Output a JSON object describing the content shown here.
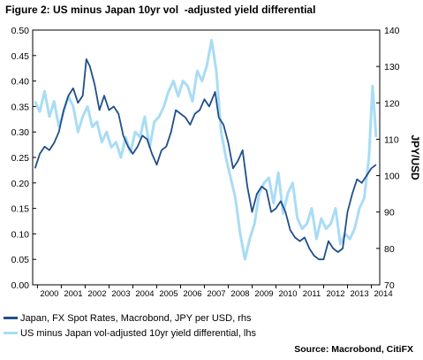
{
  "chart_data": {
    "type": "line",
    "title": "Figure 2: US minus Japan 10yr vol  -adjusted yield differential",
    "source": "Source: Macrobond, CitiFX",
    "left_axis": {
      "ylim": [
        0.0,
        0.5
      ],
      "ticks": [
        "0.00",
        "0.05",
        "0.10",
        "0.15",
        "0.20",
        "0.25",
        "0.30",
        "0.35",
        "0.40",
        "0.45",
        "0.50"
      ]
    },
    "right_axis": {
      "label": "JPY/USD",
      "ylim": [
        70,
        140
      ],
      "ticks": [
        "70",
        "80",
        "90",
        "100",
        "110",
        "120",
        "130",
        "140"
      ]
    },
    "x_ticks": [
      "2000",
      "2001",
      "2002",
      "2003",
      "2004",
      "2005",
      "2006",
      "2007",
      "2008",
      "2009",
      "2010",
      "2011",
      "2012",
      "2013",
      "2014"
    ],
    "xlim": [
      1999.8,
      2014.35
    ],
    "grid": false,
    "legend_position": "bottom-left",
    "series": [
      {
        "name": "Japan, FX Spot Rates, Macrobond, JPY per USD, rhs",
        "axis": "right",
        "color": "#1f4e8c",
        "x": [
          1999.9,
          2000.1,
          2000.3,
          2000.5,
          2000.7,
          2000.9,
          2001.1,
          2001.3,
          2001.5,
          2001.7,
          2001.9,
          2002.05,
          2002.2,
          2002.4,
          2002.6,
          2002.8,
          2003.0,
          2003.2,
          2003.4,
          2003.6,
          2003.8,
          2004.0,
          2004.2,
          2004.4,
          2004.6,
          2004.8,
          2005.0,
          2005.2,
          2005.4,
          2005.6,
          2005.8,
          2006.0,
          2006.2,
          2006.4,
          2006.6,
          2006.8,
          2007.0,
          2007.2,
          2007.45,
          2007.6,
          2007.8,
          2008.0,
          2008.2,
          2008.4,
          2008.6,
          2008.8,
          2009.0,
          2009.2,
          2009.4,
          2009.6,
          2009.8,
          2010.0,
          2010.2,
          2010.4,
          2010.6,
          2010.8,
          2011.0,
          2011.2,
          2011.4,
          2011.6,
          2011.8,
          2012.0,
          2012.2,
          2012.4,
          2012.6,
          2012.8,
          2013.0,
          2013.2,
          2013.4,
          2013.6,
          2013.8,
          2014.0,
          2014.2
        ],
        "values": [
          102,
          106,
          108,
          107,
          109,
          112,
          118,
          122,
          124,
          120,
          122,
          132,
          130,
          125,
          118,
          122,
          118,
          119,
          117,
          111,
          108,
          106,
          108,
          111,
          110,
          106,
          103,
          107,
          108,
          112,
          118,
          117,
          116,
          114,
          117,
          118,
          121,
          119,
          123,
          116,
          114,
          109,
          102,
          104,
          107,
          97,
          90,
          95,
          97,
          96,
          90,
          91,
          93,
          90,
          85,
          83,
          82,
          83,
          80,
          78,
          77,
          77,
          82,
          80,
          79,
          80,
          90,
          95,
          99,
          98,
          100,
          102,
          103
        ]
      },
      {
        "name": "US minus Japan vol-adjusted 10yr yield differential, lhs",
        "axis": "left",
        "color": "#a9dcf5",
        "x": [
          1999.9,
          2000.1,
          2000.3,
          2000.5,
          2000.7,
          2000.9,
          2001.1,
          2001.3,
          2001.5,
          2001.7,
          2001.9,
          2002.1,
          2002.3,
          2002.5,
          2002.7,
          2002.9,
          2003.1,
          2003.3,
          2003.5,
          2003.7,
          2003.9,
          2004.1,
          2004.3,
          2004.5,
          2004.7,
          2004.9,
          2005.1,
          2005.3,
          2005.5,
          2005.7,
          2005.9,
          2006.1,
          2006.3,
          2006.5,
          2006.7,
          2006.9,
          2007.1,
          2007.3,
          2007.5,
          2007.7,
          2007.9,
          2008.1,
          2008.3,
          2008.5,
          2008.7,
          2008.9,
          2009.1,
          2009.3,
          2009.5,
          2009.7,
          2009.9,
          2010.1,
          2010.3,
          2010.5,
          2010.7,
          2010.9,
          2011.1,
          2011.3,
          2011.5,
          2011.7,
          2011.9,
          2012.1,
          2012.3,
          2012.5,
          2012.7,
          2012.9,
          2013.1,
          2013.3,
          2013.5,
          2013.7,
          2013.9,
          2014.05,
          2014.2
        ],
        "values": [
          0.36,
          0.34,
          0.38,
          0.33,
          0.36,
          0.31,
          0.34,
          0.37,
          0.35,
          0.3,
          0.33,
          0.35,
          0.31,
          0.32,
          0.28,
          0.3,
          0.27,
          0.28,
          0.25,
          0.29,
          0.26,
          0.3,
          0.29,
          0.33,
          0.27,
          0.32,
          0.33,
          0.35,
          0.38,
          0.4,
          0.37,
          0.4,
          0.39,
          0.36,
          0.42,
          0.4,
          0.43,
          0.48,
          0.42,
          0.3,
          0.25,
          0.21,
          0.17,
          0.1,
          0.05,
          0.09,
          0.12,
          0.18,
          0.2,
          0.21,
          0.16,
          0.22,
          0.14,
          0.18,
          0.2,
          0.13,
          0.11,
          0.12,
          0.15,
          0.09,
          0.13,
          0.11,
          0.12,
          0.15,
          0.08,
          0.1,
          0.09,
          0.11,
          0.15,
          0.17,
          0.25,
          0.39,
          0.29
        ]
      }
    ]
  }
}
